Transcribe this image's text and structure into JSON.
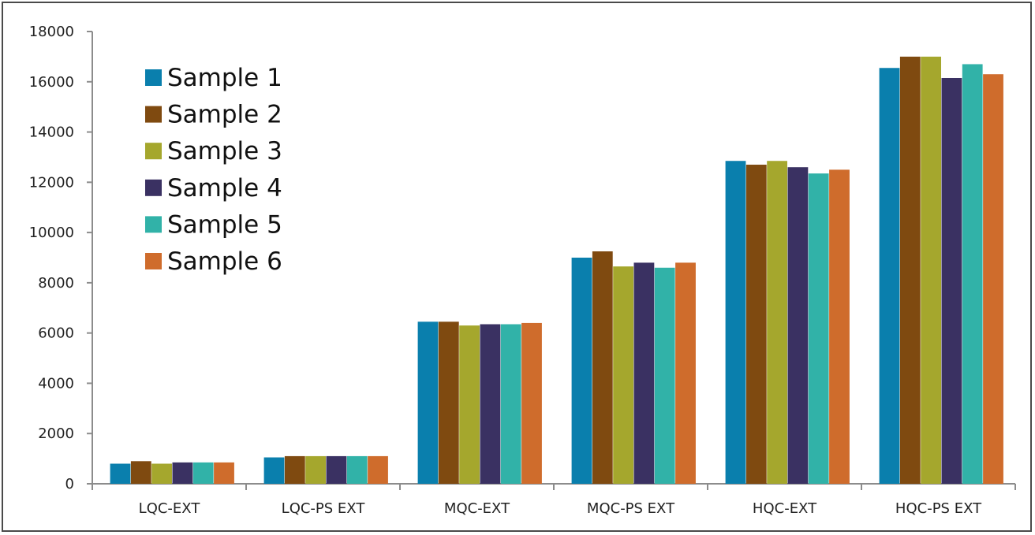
{
  "chart_data": {
    "type": "bar",
    "categories": [
      "LQC-EXT",
      "LQC-PS EXT",
      "MQC-EXT",
      "MQC-PS EXT",
      "HQC-EXT",
      "HQC-PS EXT"
    ],
    "series": [
      {
        "name": "Sample 1",
        "color": "#0a7fad",
        "values": [
          800,
          1050,
          6450,
          9000,
          12850,
          16550
        ]
      },
      {
        "name": "Sample 2",
        "color": "#7f4a10",
        "values": [
          900,
          1100,
          6450,
          9250,
          12700,
          17000
        ]
      },
      {
        "name": "Sample 3",
        "color": "#a5a72d",
        "values": [
          800,
          1100,
          6300,
          8650,
          12850,
          17000
        ]
      },
      {
        "name": "Sample 4",
        "color": "#3a3162",
        "values": [
          850,
          1100,
          6350,
          8800,
          12600,
          16150
        ]
      },
      {
        "name": "Sample 5",
        "color": "#31b2a8",
        "values": [
          850,
          1100,
          6350,
          8600,
          12350,
          16700
        ]
      },
      {
        "name": "Sample 6",
        "color": "#cf6c2c",
        "values": [
          850,
          1100,
          6400,
          8800,
          12500,
          16300
        ]
      }
    ],
    "title": "",
    "xlabel": "",
    "ylabel": "",
    "ylim": [
      0,
      18000
    ],
    "yticks": [
      "0",
      "2000",
      "4000",
      "6000",
      "8000",
      "10000",
      "12000",
      "14000",
      "16000",
      "18000"
    ],
    "grid": false,
    "legend_position": "top-left"
  }
}
